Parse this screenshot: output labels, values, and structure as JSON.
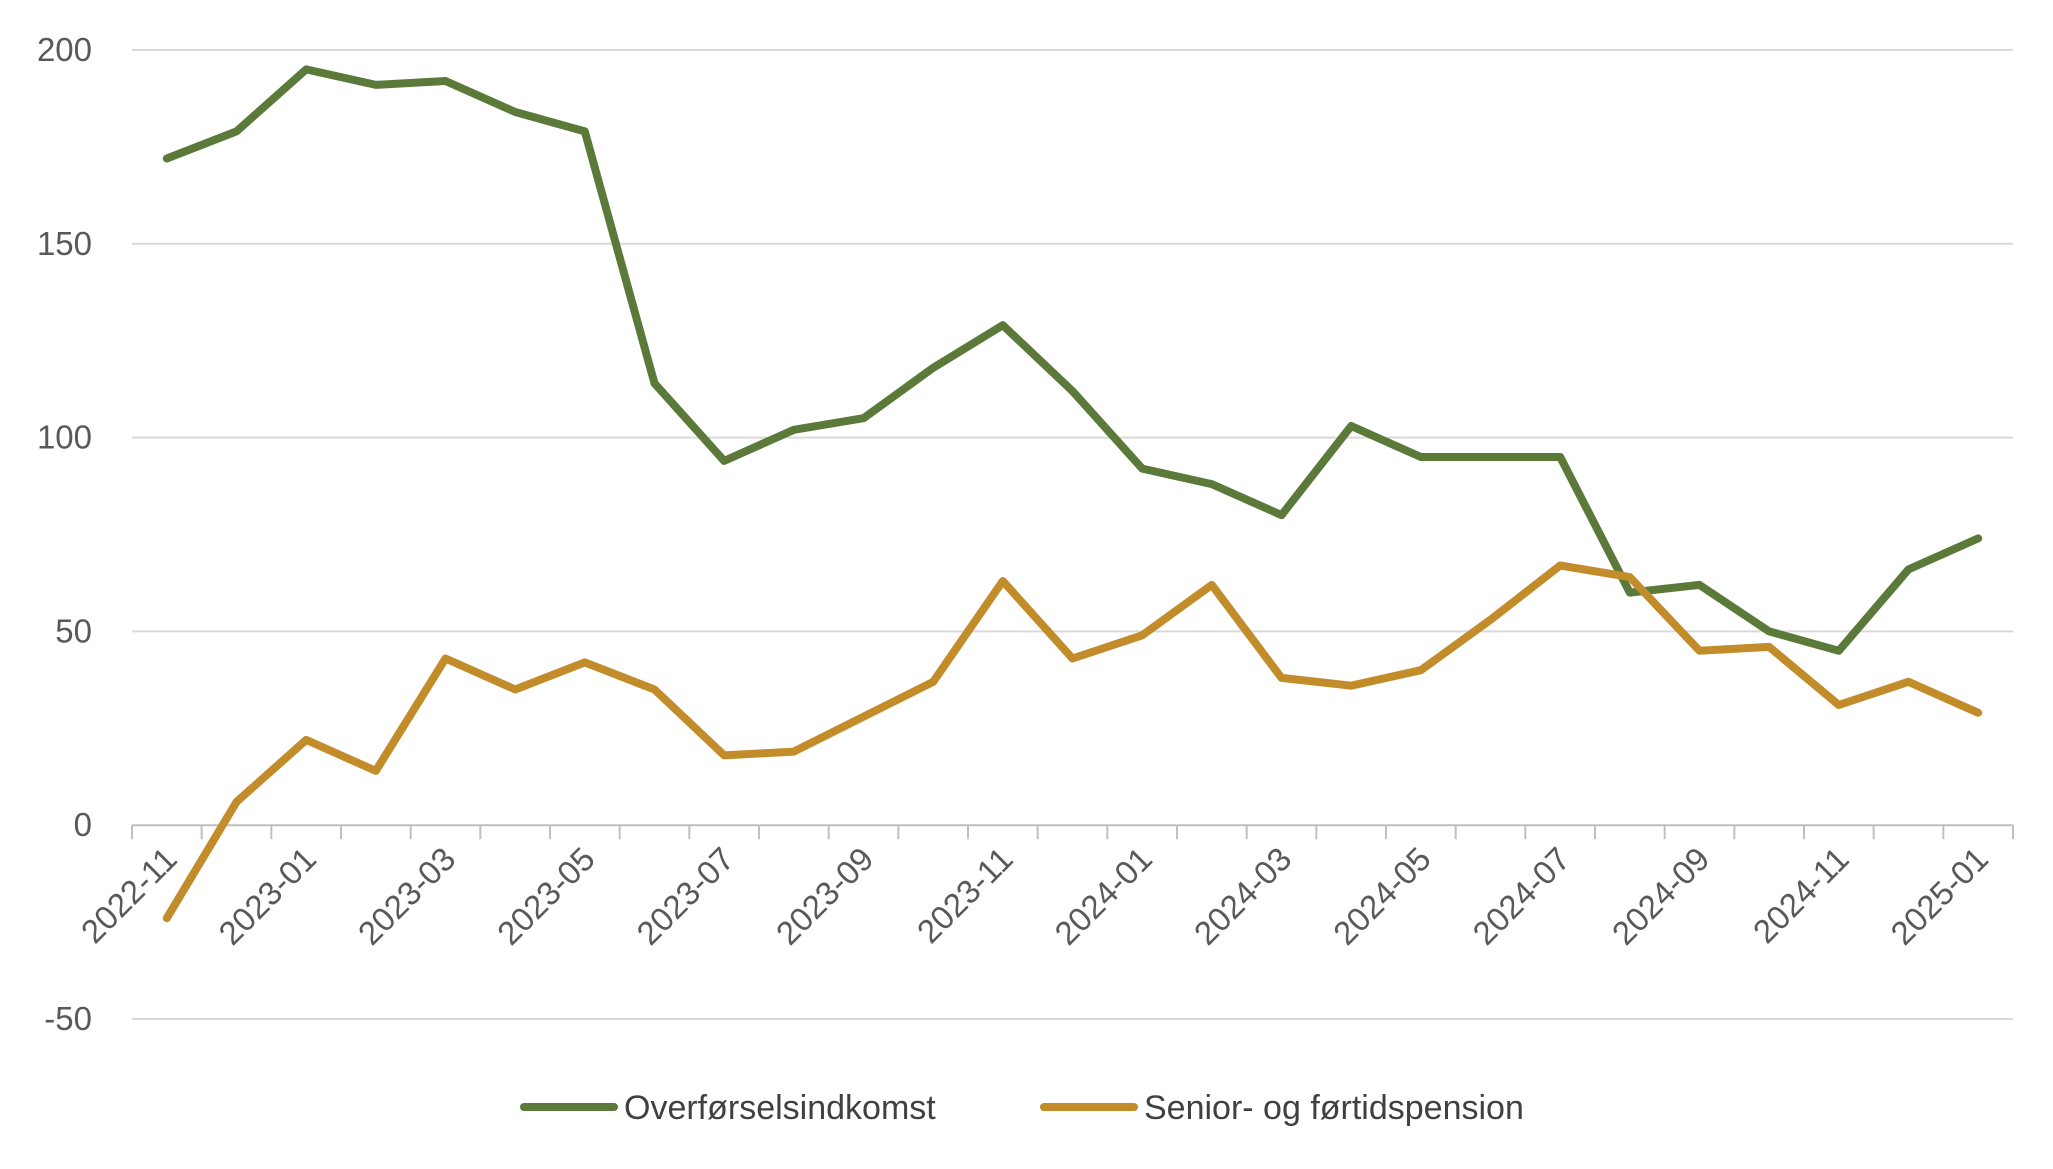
{
  "chart_data": {
    "type": "line",
    "title": "",
    "xlabel": "",
    "ylabel": "",
    "ylim": [
      -50,
      200
    ],
    "yticks": [
      "-50",
      "0",
      "50",
      "100",
      "150",
      "200"
    ],
    "grid": true,
    "legend_position": "bottom",
    "x": [
      "2022-11",
      "2022-12",
      "2023-01",
      "2023-02",
      "2023-03",
      "2023-04",
      "2023-05",
      "2023-06",
      "2023-07",
      "2023-08",
      "2023-09",
      "2023-10",
      "2023-11",
      "2023-12",
      "2024-01",
      "2024-02",
      "2024-03",
      "2024-04",
      "2024-05",
      "2024-06",
      "2024-07",
      "2024-08",
      "2024-09",
      "2024-10",
      "2024-11",
      "2024-12",
      "2025-01"
    ],
    "xtick_labels": [
      "2022-11",
      "2023-01",
      "2023-03",
      "2023-05",
      "2023-07",
      "2023-09",
      "2023-11",
      "2024-01",
      "2024-03",
      "2024-05",
      "2024-07",
      "2024-09",
      "2024-11",
      "2025-01"
    ],
    "series": [
      {
        "name": "Overførselsindkomst",
        "color": "#5b7a3a",
        "values": [
          172,
          179,
          195,
          191,
          192,
          184,
          179,
          114,
          94,
          102,
          105,
          118,
          129,
          112,
          92,
          88,
          80,
          103,
          95,
          95,
          95,
          60,
          62,
          50,
          45,
          66,
          74
        ]
      },
      {
        "name": "Senior- og førtidspension",
        "color": "#c28c2a",
        "values": [
          -24,
          6,
          22,
          14,
          43,
          35,
          42,
          35,
          18,
          19,
          28,
          37,
          63,
          43,
          49,
          62,
          38,
          36,
          40,
          53,
          67,
          64,
          45,
          46,
          31,
          37,
          29
        ]
      }
    ]
  }
}
